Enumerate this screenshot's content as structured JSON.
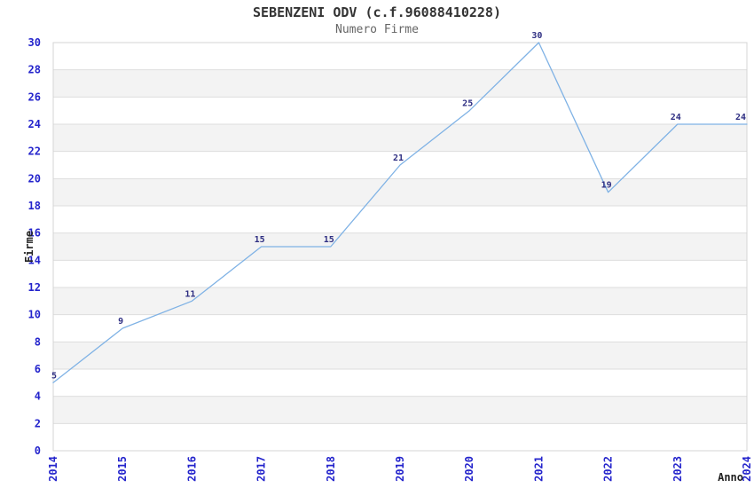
{
  "chart_data": {
    "type": "line",
    "title": "SEBENZENI ODV (c.f.96088410228)",
    "subtitle": "Numero Firme",
    "xlabel": "Anno",
    "ylabel": "Firme",
    "x": [
      2014,
      2015,
      2016,
      2017,
      2018,
      2019,
      2020,
      2021,
      2022,
      2023,
      2024
    ],
    "values": [
      5,
      9,
      11,
      15,
      15,
      21,
      25,
      30,
      19,
      24,
      24
    ],
    "point_labels": [
      "5",
      "9",
      "11",
      "15",
      "15",
      "21",
      "25",
      "30",
      "19",
      "24",
      "24"
    ],
    "ylim": [
      0,
      30
    ],
    "ytick_step": 2,
    "grid": "horizontal",
    "banding": "alternating-gray-rows",
    "legend": "none",
    "colors": {
      "line": "#7fb2e5",
      "tick_labels": "#2424cc",
      "point_labels": "#2e2e82",
      "band": "#f3f3f3",
      "grid": "#dedede",
      "border": "#d4d4d4",
      "title": "#333333",
      "subtitle": "#666666",
      "axis_titles": "#222222",
      "background": "#ffffff"
    }
  }
}
